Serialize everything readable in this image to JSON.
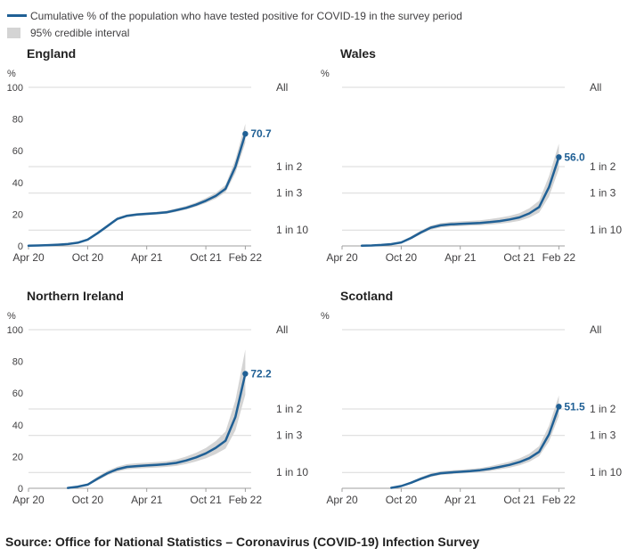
{
  "style": {
    "line_color": "#206095",
    "band_color": "#d4d4d4",
    "grid_color": "#d9d9d9",
    "axis_color": "#9f9f9f",
    "text_color": "#414042"
  },
  "legend": {
    "line_label": "Cumulative % of the population who have tested positive for COVID-19 in the survey period",
    "band_label": "95% credible interval"
  },
  "source": "Source: Office for National Statistics – Coronavirus (COVID-19) Infection Survey",
  "chart_data": [
    {
      "type": "line",
      "title": "England",
      "unit_label": "%",
      "end_label": "70.7",
      "legend_series": [
        "Cumulative %",
        "95% credible interval"
      ],
      "x_ticks": [
        {
          "label": "Apr 20",
          "month": 0
        },
        {
          "label": "Oct 20",
          "month": 6
        },
        {
          "label": "Apr 21",
          "month": 12
        },
        {
          "label": "Oct 21",
          "month": 18
        },
        {
          "label": "Feb 22",
          "month": 22
        }
      ],
      "y_tick_labels": [
        {
          "label": "0",
          "value": 0
        },
        {
          "label": "20",
          "value": 20
        },
        {
          "label": "40",
          "value": 40
        },
        {
          "label": "60",
          "value": 60
        },
        {
          "label": "80",
          "value": 80
        },
        {
          "label": "100",
          "value": 100
        }
      ],
      "right_labels": [
        {
          "label": "All",
          "value": 100
        },
        {
          "label": "1 in 2",
          "value": 50
        },
        {
          "label": "1 in 3",
          "value": 33.3
        },
        {
          "label": "1 in 10",
          "value": 10
        }
      ],
      "ylim": [
        0,
        100
      ],
      "values": [
        0.1,
        0.3,
        0.5,
        0.8,
        1.2,
        2.0,
        4.0,
        8.0,
        12.5,
        17.0,
        19.0,
        19.8,
        20.2,
        20.6,
        21.2,
        22.5,
        24.0,
        26.0,
        28.5,
        31.5,
        36.0,
        50.0,
        70.7
      ],
      "band_low": [
        0.0,
        0.2,
        0.4,
        0.6,
        1.0,
        1.7,
        3.5,
        7.3,
        11.7,
        16.2,
        18.2,
        19.0,
        19.4,
        19.8,
        20.3,
        21.5,
        23.0,
        24.8,
        27.0,
        29.8,
        33.8,
        46.0,
        65.0
      ],
      "band_high": [
        0.3,
        0.5,
        0.7,
        1.0,
        1.5,
        2.4,
        4.6,
        8.8,
        13.4,
        17.9,
        19.9,
        20.7,
        21.1,
        21.5,
        22.2,
        23.6,
        25.2,
        27.4,
        30.2,
        33.4,
        38.5,
        54.5,
        77.0
      ]
    },
    {
      "type": "line",
      "title": "Wales",
      "unit_label": "%",
      "end_label": "56.0",
      "legend_series": [
        "Cumulative %",
        "95% credible interval"
      ],
      "x_ticks": [
        {
          "label": "Apr 20",
          "month": 0
        },
        {
          "label": "Oct 20",
          "month": 6
        },
        {
          "label": "Apr 21",
          "month": 12
        },
        {
          "label": "Oct 21",
          "month": 18
        },
        {
          "label": "Feb 22",
          "month": 22
        }
      ],
      "y_tick_labels": [],
      "right_labels": [
        {
          "label": "All",
          "value": 100
        },
        {
          "label": "1 in 2",
          "value": 50
        },
        {
          "label": "1 in 3",
          "value": 33.3
        },
        {
          "label": "1 in 10",
          "value": 10
        }
      ],
      "ylim": [
        0,
        100
      ],
      "values": [
        null,
        null,
        0.1,
        0.3,
        0.6,
        1.1,
        2.2,
        5.0,
        8.5,
        11.5,
        13.0,
        13.6,
        13.9,
        14.2,
        14.5,
        15.0,
        15.7,
        16.7,
        18.0,
        20.5,
        24.5,
        37.0,
        56.0
      ],
      "band_low": [
        null,
        null,
        0.0,
        0.2,
        0.4,
        0.8,
        1.7,
        4.2,
        7.5,
        10.3,
        11.7,
        12.2,
        12.5,
        12.8,
        13.0,
        13.4,
        14.0,
        14.8,
        15.8,
        17.8,
        21.0,
        31.0,
        48.5
      ],
      "band_high": [
        null,
        null,
        0.3,
        0.5,
        0.9,
        1.5,
        2.8,
        6.0,
        9.7,
        12.8,
        14.4,
        15.1,
        15.5,
        15.8,
        16.2,
        16.9,
        17.8,
        19.0,
        20.6,
        23.7,
        28.5,
        44.0,
        64.5
      ]
    },
    {
      "type": "line",
      "title": "Northern Ireland",
      "unit_label": "%",
      "end_label": "72.2",
      "legend_series": [
        "Cumulative %",
        "95% credible interval"
      ],
      "x_ticks": [
        {
          "label": "Apr 20",
          "month": 0
        },
        {
          "label": "Oct 20",
          "month": 6
        },
        {
          "label": "Apr 21",
          "month": 12
        },
        {
          "label": "Oct 21",
          "month": 18
        },
        {
          "label": "Feb 22",
          "month": 22
        }
      ],
      "y_tick_labels": [
        {
          "label": "0",
          "value": 0
        },
        {
          "label": "20",
          "value": 20
        },
        {
          "label": "40",
          "value": 40
        },
        {
          "label": "60",
          "value": 60
        },
        {
          "label": "80",
          "value": 80
        },
        {
          "label": "100",
          "value": 100
        }
      ],
      "right_labels": [
        {
          "label": "All",
          "value": 100
        },
        {
          "label": "1 in 2",
          "value": 50
        },
        {
          "label": "1 in 3",
          "value": 33.3
        },
        {
          "label": "1 in 10",
          "value": 10
        }
      ],
      "ylim": [
        0,
        100
      ],
      "values": [
        null,
        null,
        null,
        null,
        0.2,
        1.0,
        2.3,
        6.0,
        9.5,
        12.0,
        13.5,
        14.0,
        14.4,
        14.8,
        15.2,
        16.0,
        17.5,
        19.5,
        22.0,
        25.5,
        30.0,
        45.0,
        72.2
      ],
      "band_low": [
        null,
        null,
        null,
        null,
        0.1,
        0.7,
        1.7,
        4.9,
        8.2,
        10.5,
        11.9,
        12.4,
        12.8,
        13.1,
        13.5,
        14.1,
        15.3,
        16.9,
        18.9,
        21.6,
        25.0,
        36.5,
        59.0
      ],
      "band_high": [
        null,
        null,
        null,
        null,
        0.4,
        1.4,
        3.0,
        7.3,
        11.0,
        13.6,
        15.2,
        15.8,
        16.2,
        16.6,
        17.1,
        18.1,
        20.0,
        22.4,
        25.4,
        29.8,
        35.8,
        55.5,
        87.5
      ]
    },
    {
      "type": "line",
      "title": "Scotland",
      "unit_label": "%",
      "end_label": "51.5",
      "legend_series": [
        "Cumulative %",
        "95% credible interval"
      ],
      "x_ticks": [
        {
          "label": "Apr 20",
          "month": 0
        },
        {
          "label": "Oct 20",
          "month": 6
        },
        {
          "label": "Apr 21",
          "month": 12
        },
        {
          "label": "Oct 21",
          "month": 18
        },
        {
          "label": "Feb 22",
          "month": 22
        }
      ],
      "y_tick_labels": [],
      "right_labels": [
        {
          "label": "All",
          "value": 100
        },
        {
          "label": "1 in 2",
          "value": 50
        },
        {
          "label": "1 in 3",
          "value": 33.3
        },
        {
          "label": "1 in 10",
          "value": 10
        }
      ],
      "ylim": [
        0,
        100
      ],
      "values": [
        null,
        null,
        null,
        null,
        null,
        0.3,
        1.4,
        3.5,
        6.0,
        8.2,
        9.5,
        10.0,
        10.4,
        10.8,
        11.4,
        12.3,
        13.5,
        14.8,
        16.5,
        19.0,
        23.0,
        34.0,
        51.5
      ],
      "band_low": [
        null,
        null,
        null,
        null,
        null,
        0.2,
        1.1,
        2.9,
        5.2,
        7.2,
        8.4,
        8.9,
        9.3,
        9.6,
        10.1,
        10.9,
        11.9,
        13.0,
        14.5,
        16.7,
        20.2,
        29.5,
        45.5
      ],
      "band_high": [
        null,
        null,
        null,
        null,
        null,
        0.5,
        1.8,
        4.2,
        7.0,
        9.4,
        10.8,
        11.3,
        11.7,
        12.2,
        12.8,
        13.9,
        15.3,
        16.8,
        18.8,
        21.8,
        26.5,
        39.5,
        58.5
      ]
    }
  ]
}
